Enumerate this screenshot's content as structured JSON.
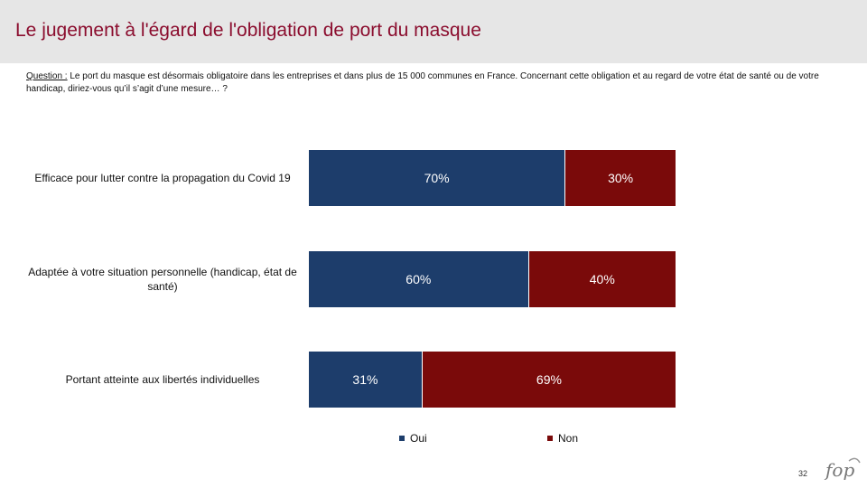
{
  "header": {
    "title": "Le jugement à l'égard de l'obligation de port du masque"
  },
  "question": {
    "label": "Question :",
    "text": " Le port du masque est désormais obligatoire dans les entreprises et dans plus de 15 000 communes en France.  Concernant cette obligation et au regard de votre état de santé ou de votre handicap, diriez-vous qu’il s’agit d’une mesure… ?"
  },
  "chart_data": {
    "type": "bar",
    "orientation": "horizontal",
    "stacked": true,
    "categories": [
      "Efficace pour lutter contre la propagation du Covid 19",
      "Adaptée à votre situation personnelle (handicap, état de santé)",
      "Portant atteinte aux libertés individuelles"
    ],
    "series": [
      {
        "name": "Oui",
        "color": "#1d3d6b",
        "values": [
          70,
          60,
          31
        ],
        "labels": [
          "70%",
          "60%",
          "31%"
        ]
      },
      {
        "name": "Non",
        "color": "#7a0a0a",
        "values": [
          30,
          40,
          69
        ],
        "labels": [
          "30%",
          "40%",
          "69%"
        ]
      }
    ],
    "xlim": [
      0,
      100
    ],
    "legend": "bottom"
  },
  "footer": {
    "page_number": "32",
    "logo_text": "ifop"
  }
}
